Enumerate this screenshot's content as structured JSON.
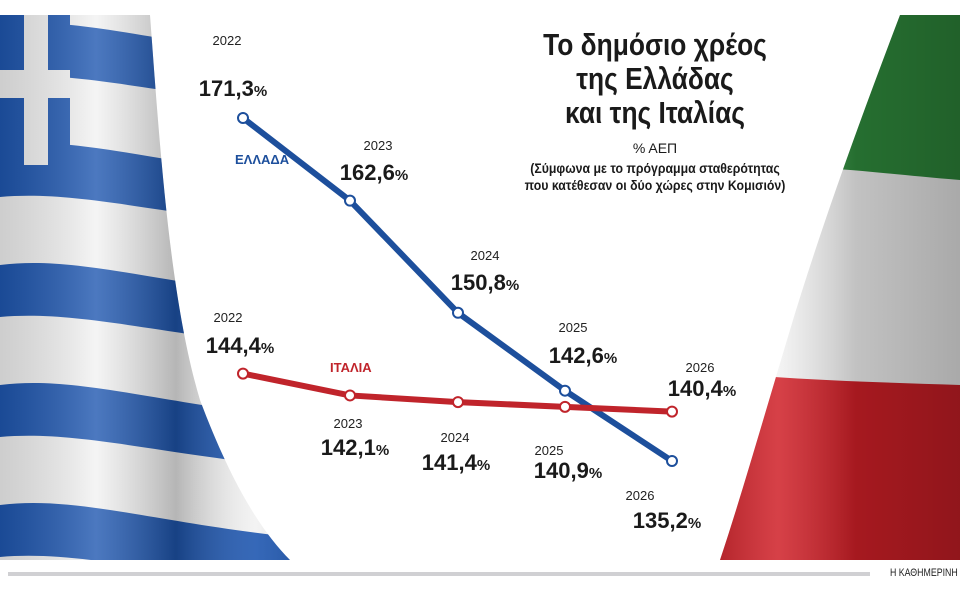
{
  "chart_data": {
    "type": "line",
    "title": "Το δημόσιο χρέος της Ελλάδας και της Ιταλίας",
    "title_lines": [
      "Το δημόσιο χρέος",
      "της Ελλάδας",
      "και της Ιταλίας"
    ],
    "unit": "% ΑΕΠ",
    "note_lines": [
      "(Σύμφωνα με το πρόγραμμα σταθερότητας",
      "που κατέθεσαν οι δύο χώρες στην Κομισιόν)"
    ],
    "x": [
      "2022",
      "2023",
      "2024",
      "2025",
      "2026"
    ],
    "ylim": [
      135.2,
      171.3
    ],
    "grid": false,
    "series": [
      {
        "name": "ΕΛΛΑΔΑ",
        "color": "#1d4f9c",
        "values": [
          171.3,
          162.6,
          150.8,
          142.6,
          135.2
        ],
        "labels": [
          "171,3",
          "162,6",
          "150,8",
          "142,6",
          "135,2"
        ]
      },
      {
        "name": "ΙΤΑΛΙΑ",
        "color": "#c0242b",
        "values": [
          144.4,
          142.1,
          141.4,
          140.9,
          140.4
        ],
        "labels": [
          "144,4",
          "142,1",
          "141,4",
          "140,9",
          "140,4"
        ]
      }
    ],
    "percent_sign": "%"
  },
  "credit": "Η ΚΑΘΗΜΕΡΙΝΗ"
}
